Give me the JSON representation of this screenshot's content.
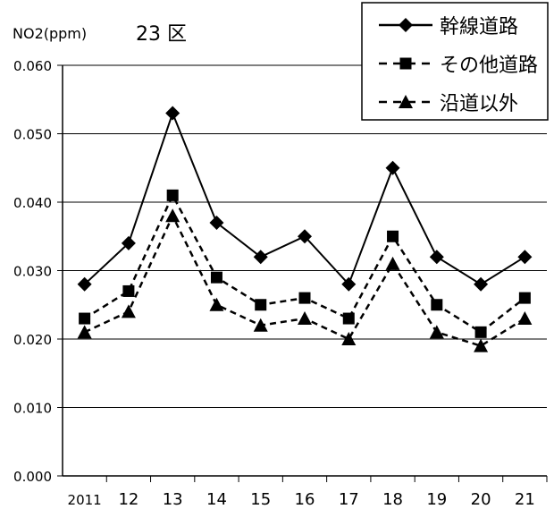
{
  "chart_data": {
    "type": "line",
    "title": "23 区",
    "ylabel": "NO2(ppm)",
    "xlabel": "",
    "categories": [
      "2011",
      "12",
      "13",
      "14",
      "15",
      "16",
      "17",
      "18",
      "19",
      "20",
      "21"
    ],
    "ylim": [
      0,
      0.06
    ],
    "yticks": [
      "0.000",
      "0.010",
      "0.020",
      "0.030",
      "0.040",
      "0.050",
      "0.060"
    ],
    "grid": true,
    "legend_position": "top-right",
    "series": [
      {
        "name": "幹線道路",
        "marker": "diamond",
        "line": "solid",
        "values": [
          0.028,
          0.034,
          0.053,
          0.037,
          0.032,
          0.035,
          0.028,
          0.045,
          0.032,
          0.028,
          0.032
        ]
      },
      {
        "name": "その他道路",
        "marker": "square",
        "line": "dashed",
        "values": [
          0.023,
          0.027,
          0.041,
          0.029,
          0.025,
          0.026,
          0.023,
          0.035,
          0.025,
          0.021,
          0.026
        ]
      },
      {
        "name": "沿道以外",
        "marker": "triangle",
        "line": "dashed",
        "values": [
          0.021,
          0.024,
          0.038,
          0.025,
          0.022,
          0.023,
          0.02,
          0.031,
          0.021,
          0.019,
          0.023
        ]
      }
    ],
    "colors": {
      "line": "#000000",
      "grid": "#000000",
      "background": "#ffffff"
    }
  }
}
